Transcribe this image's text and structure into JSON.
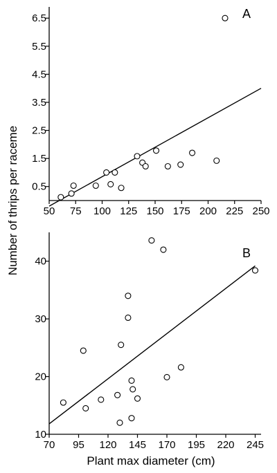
{
  "chart_data": [
    {
      "type": "scatter",
      "panel_label": "A",
      "xlim": [
        50,
        250
      ],
      "ylim": [
        0,
        6.9
      ],
      "x_ticks": [
        "50",
        "75",
        "100",
        "125",
        "150",
        "175",
        "200",
        "225",
        "250"
      ],
      "y_ticks": [
        "0.5",
        "1.5",
        "2.5",
        "3.5",
        "4.5",
        "5.5",
        "6.5"
      ],
      "x_tick_values": [
        50,
        75,
        100,
        125,
        150,
        175,
        200,
        225,
        250
      ],
      "y_tick_values": [
        0.5,
        1.5,
        2.5,
        3.5,
        4.5,
        5.5,
        6.5
      ],
      "grid": false,
      "points": [
        {
          "x": 61,
          "y": 0.12
        },
        {
          "x": 71,
          "y": 0.25
        },
        {
          "x": 73,
          "y": 0.53
        },
        {
          "x": 94,
          "y": 0.53
        },
        {
          "x": 104,
          "y": 1.0
        },
        {
          "x": 108,
          "y": 0.58
        },
        {
          "x": 112,
          "y": 1.0
        },
        {
          "x": 118,
          "y": 0.45
        },
        {
          "x": 133,
          "y": 1.58
        },
        {
          "x": 138,
          "y": 1.35
        },
        {
          "x": 141,
          "y": 1.22
        },
        {
          "x": 151,
          "y": 1.78
        },
        {
          "x": 162,
          "y": 1.22
        },
        {
          "x": 174,
          "y": 1.28
        },
        {
          "x": 185,
          "y": 1.7
        },
        {
          "x": 208,
          "y": 1.42
        },
        {
          "x": 216,
          "y": 6.5
        }
      ],
      "fit_line": {
        "x": [
          50,
          250
        ],
        "y": [
          -0.2,
          4.0
        ]
      }
    },
    {
      "type": "scatter",
      "panel_label": "B",
      "xlim": [
        70,
        250
      ],
      "ylim": [
        10,
        45
      ],
      "x_ticks": [
        "70",
        "95",
        "120",
        "145",
        "170",
        "195",
        "220",
        "245"
      ],
      "y_ticks": [
        "10",
        "20",
        "30",
        "40"
      ],
      "x_tick_values": [
        70,
        95,
        120,
        145,
        170,
        195,
        220,
        245
      ],
      "y_tick_values": [
        10,
        20,
        30,
        40
      ],
      "grid": false,
      "points": [
        {
          "x": 82,
          "y": 15.5
        },
        {
          "x": 101,
          "y": 14.5
        },
        {
          "x": 99,
          "y": 24.5
        },
        {
          "x": 114,
          "y": 16.0
        },
        {
          "x": 128,
          "y": 16.8
        },
        {
          "x": 130,
          "y": 12.0
        },
        {
          "x": 131,
          "y": 25.5
        },
        {
          "x": 137,
          "y": 34.0
        },
        {
          "x": 137,
          "y": 30.2
        },
        {
          "x": 140,
          "y": 19.3
        },
        {
          "x": 141,
          "y": 17.8
        },
        {
          "x": 140,
          "y": 12.8
        },
        {
          "x": 145,
          "y": 16.2
        },
        {
          "x": 157,
          "y": 43.6
        },
        {
          "x": 167,
          "y": 42.0
        },
        {
          "x": 170,
          "y": 19.9
        },
        {
          "x": 182,
          "y": 21.6
        },
        {
          "x": 245,
          "y": 38.4
        }
      ],
      "fit_line": {
        "x": [
          70,
          245
        ],
        "y": [
          11.8,
          39.2
        ]
      }
    }
  ],
  "labels": {
    "y_axis_title": "Number of thrips per raceme",
    "x_axis_title": "Plant max diameter (cm)"
  }
}
